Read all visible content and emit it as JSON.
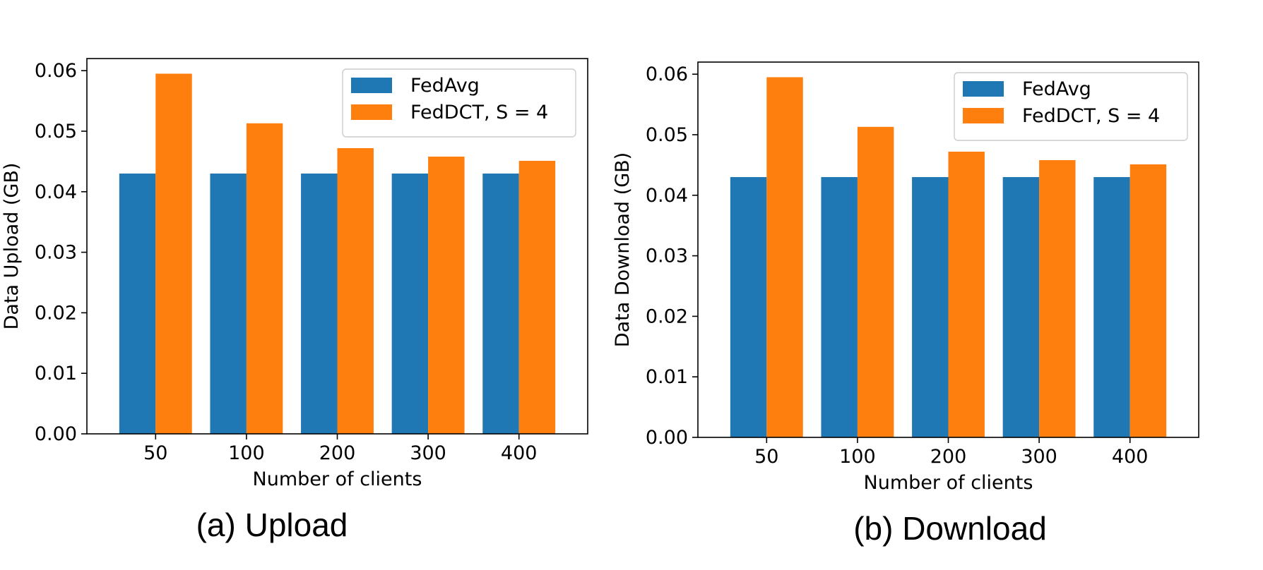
{
  "chart_data": [
    {
      "type": "bar",
      "title": "",
      "caption": "(a) Upload",
      "xlabel": "Number of clients",
      "ylabel": "Data Upload (GB)",
      "categories": [
        "50",
        "100",
        "200",
        "300",
        "400"
      ],
      "ylim": [
        0,
        0.062
      ],
      "yticks": [
        "0.00",
        "0.01",
        "0.02",
        "0.03",
        "0.04",
        "0.05",
        "0.06"
      ],
      "legend_position": "top-right",
      "series": [
        {
          "name": "FedAvg",
          "color": "#1f77b4",
          "values": [
            0.043,
            0.043,
            0.043,
            0.043,
            0.043
          ]
        },
        {
          "name": "FedDCT, S = 4",
          "color": "#ff7f0e",
          "values": [
            0.0595,
            0.0513,
            0.0472,
            0.0458,
            0.0451
          ]
        }
      ]
    },
    {
      "type": "bar",
      "title": "",
      "caption": "(b) Download",
      "xlabel": "Number of clients",
      "ylabel": "Data Download (GB)",
      "categories": [
        "50",
        "100",
        "200",
        "300",
        "400"
      ],
      "ylim": [
        0,
        0.062
      ],
      "yticks": [
        "0.00",
        "0.01",
        "0.02",
        "0.03",
        "0.04",
        "0.05",
        "0.06"
      ],
      "legend_position": "top-right",
      "series": [
        {
          "name": "FedAvg",
          "color": "#1f77b4",
          "values": [
            0.043,
            0.043,
            0.043,
            0.043,
            0.043
          ]
        },
        {
          "name": "FedDCT, S = 4",
          "color": "#ff7f0e",
          "values": [
            0.0595,
            0.0513,
            0.0472,
            0.0458,
            0.0451
          ]
        }
      ]
    }
  ]
}
